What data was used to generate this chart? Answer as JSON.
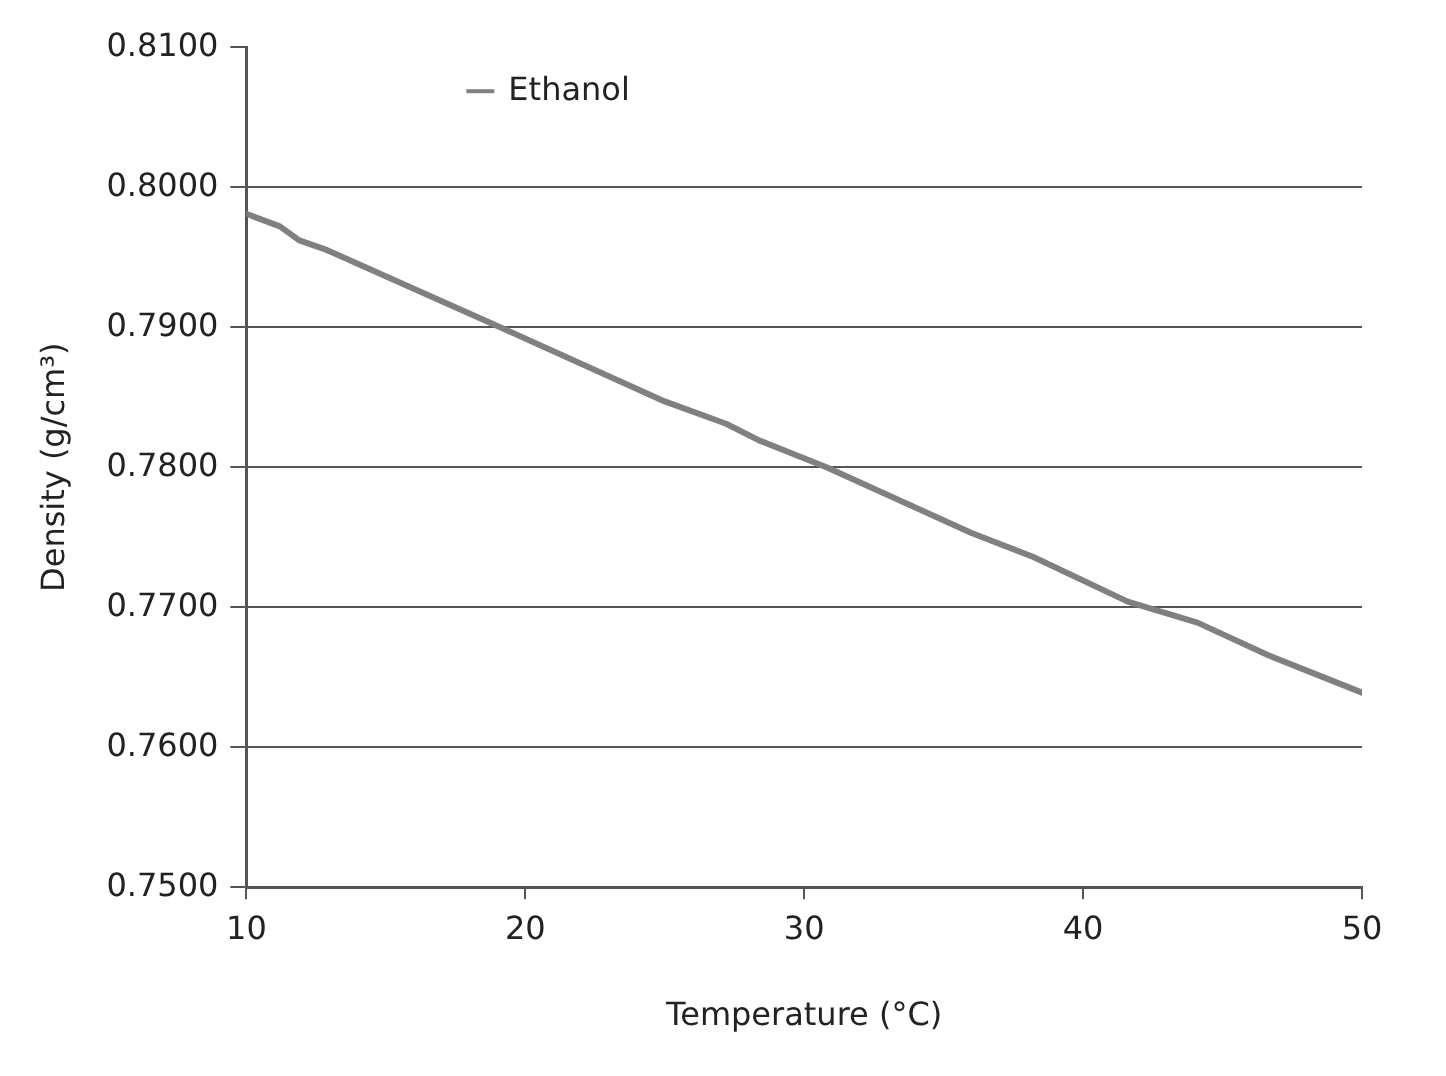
{
  "chart_data": {
    "type": "line",
    "xlabel": "Temperature (°C)",
    "ylabel": "Density (g/cm³)",
    "x": [
      10,
      11.2,
      11.9,
      12.9,
      19.1,
      25.0,
      27.2,
      28.4,
      30.8,
      36.0,
      38.2,
      41.6,
      44.1,
      46.6,
      50
    ],
    "series": [
      {
        "name": "Ethanol",
        "color": "#808080",
        "values": [
          0.7981,
          0.7972,
          0.7962,
          0.7955,
          0.79,
          0.7847,
          0.7831,
          0.7819,
          0.78,
          0.7753,
          0.7736,
          0.7704,
          0.7689,
          0.7666,
          0.7639
        ]
      }
    ],
    "xlim": [
      10,
      50
    ],
    "xticks": [
      10,
      20,
      30,
      40,
      50
    ],
    "ylim": [
      0.75,
      0.81
    ],
    "yticks": [
      {
        "value": 0.75,
        "label": "0.7500"
      },
      {
        "value": 0.76,
        "label": "0.7600"
      },
      {
        "value": 0.77,
        "label": "0.7700"
      },
      {
        "value": 0.78,
        "label": "0.7800"
      },
      {
        "value": 0.79,
        "label": "0.7900"
      },
      {
        "value": 0.8,
        "label": "0.8000"
      },
      {
        "value": 0.81,
        "label": "0.8100"
      }
    ],
    "grid": "y",
    "legend": "top left",
    "marker": "none",
    "line_style": "solid"
  }
}
